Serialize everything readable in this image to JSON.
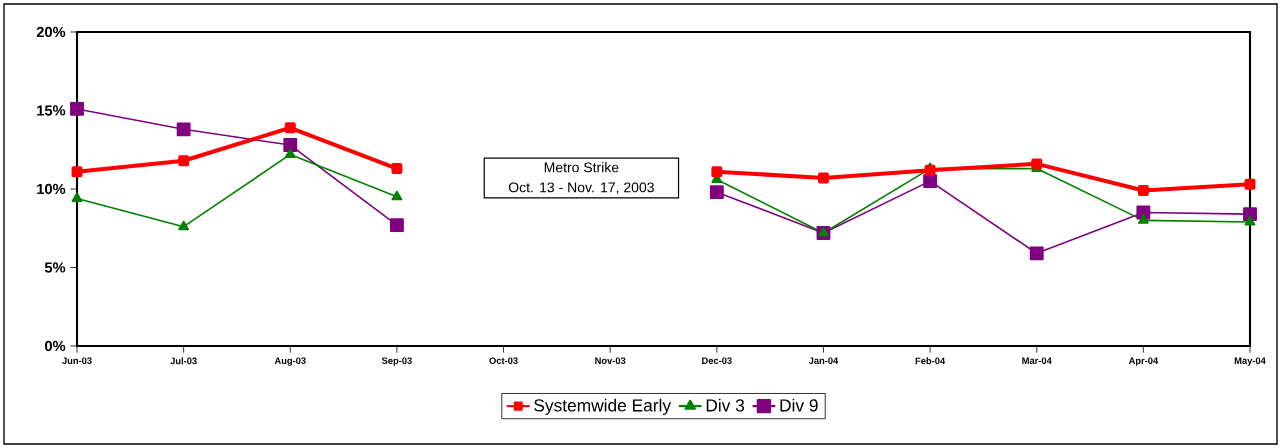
{
  "chart_data": {
    "type": "line",
    "categories": [
      "Jun-03",
      "Jul-03",
      "Aug-03",
      "Sep-03",
      "Oct-03",
      "Nov-03",
      "Dec-03",
      "Jan-04",
      "Feb-04",
      "Mar-04",
      "Apr-04",
      "May-04"
    ],
    "series": [
      {
        "name": "Systemwide Early",
        "color": "#ff0000",
        "marker": "square",
        "values": [
          11.1,
          11.8,
          13.9,
          11.3,
          null,
          null,
          11.1,
          10.7,
          11.2,
          11.6,
          9.9,
          10.3
        ]
      },
      {
        "name": "Div 3",
        "color": "#008000",
        "marker": "triangle",
        "values": [
          9.4,
          7.6,
          12.2,
          9.5,
          null,
          null,
          10.6,
          7.2,
          11.3,
          11.3,
          8.0,
          7.9
        ]
      },
      {
        "name": "Div 9",
        "color": "#800080",
        "marker": "square",
        "values": [
          15.1,
          13.8,
          12.8,
          7.7,
          null,
          null,
          9.8,
          7.2,
          10.5,
          5.9,
          8.5,
          8.4
        ]
      }
    ],
    "ylim": [
      0,
      20
    ],
    "yticks": [
      {
        "value": 0,
        "label": "0%"
      },
      {
        "value": 5,
        "label": "5%"
      },
      {
        "value": 10,
        "label": "10%"
      },
      {
        "value": 15,
        "label": "15%"
      },
      {
        "value": 20,
        "label": "20%"
      }
    ],
    "annotations": [
      "Metro Strike",
      "Oct. 13 - Nov. 17, 2003"
    ],
    "legend": "bottom",
    "line_style": "solid"
  }
}
